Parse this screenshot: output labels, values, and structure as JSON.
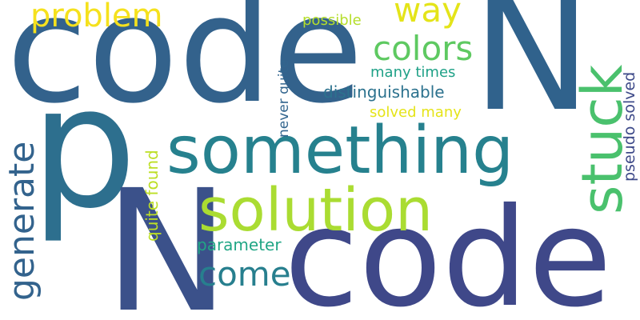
{
  "words": {
    "code_big": "code",
    "code_bottom": "code",
    "N_top": "N",
    "N_bottom": "N",
    "p": "p",
    "something": "something",
    "solution": "solution",
    "stuck": "stuck",
    "problem": "problem",
    "way": "way",
    "colors": "colors",
    "generate": "generate",
    "come": "come",
    "possible": "possible",
    "never_quite": "never quite",
    "many_times": "many times",
    "distinguishable": "distinguishable",
    "solved_many": "solved many",
    "quite_found": "quite found",
    "parameter": "parameter",
    "pseudo_solved": "pseudo solved"
  },
  "colors": {
    "background": "#ffffff",
    "palette": "viridis"
  }
}
